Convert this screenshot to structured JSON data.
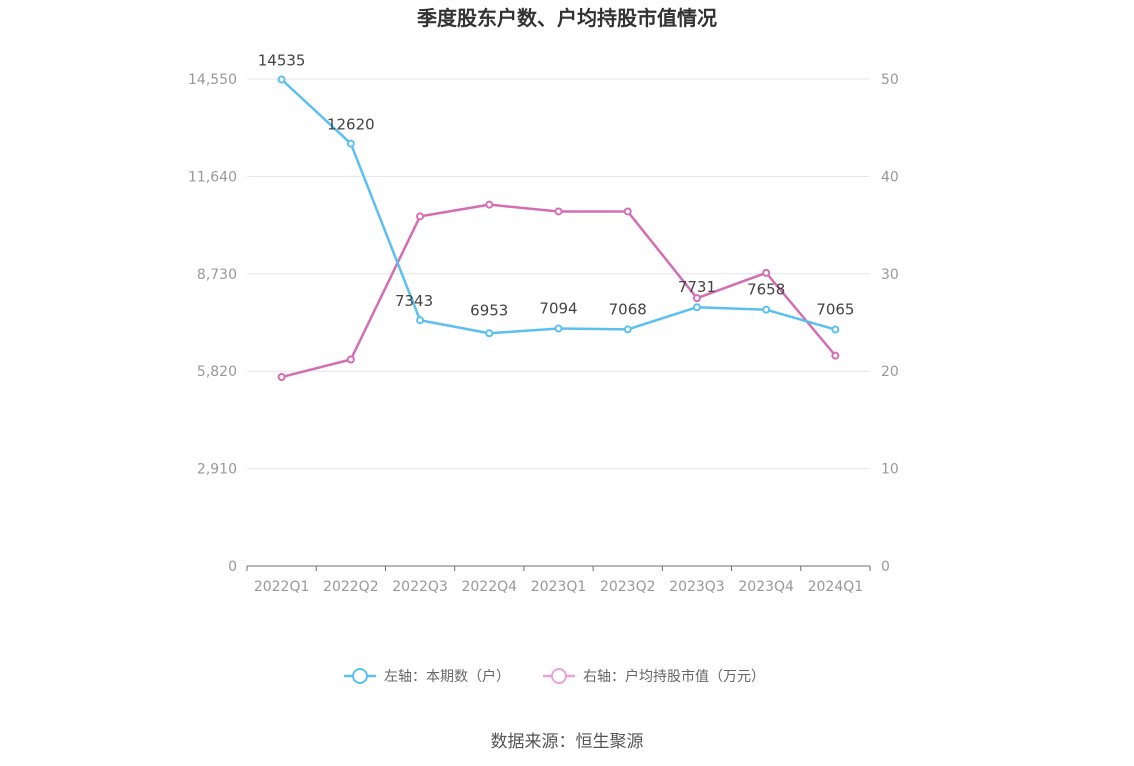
{
  "chart_data": {
    "type": "line",
    "title": "季度股东户数、户均持股市值情况",
    "categories": [
      "2022Q1",
      "2022Q2",
      "2022Q3",
      "2022Q4",
      "2023Q1",
      "2023Q2",
      "2023Q3",
      "2023Q4",
      "2024Q1"
    ],
    "left_axis": {
      "ylim": [
        0,
        14550
      ],
      "ticks": [
        0,
        2910,
        5820,
        8730,
        11640,
        14550
      ],
      "tick_labels": [
        "0",
        "2,910",
        "5,820",
        "8,730",
        "11,640",
        "14,550"
      ]
    },
    "right_axis": {
      "ylim": [
        0,
        50
      ],
      "ticks": [
        0,
        10,
        20,
        30,
        40,
        50
      ],
      "tick_labels": [
        "0",
        "10",
        "20",
        "30",
        "40",
        "50"
      ]
    },
    "series": [
      {
        "name": "左轴：本期数（户）",
        "axis": "left",
        "color": "#5bc0f0",
        "values": [
          14535,
          12620,
          7343,
          6953,
          7094,
          7068,
          7731,
          7658,
          7065
        ],
        "data_labels": [
          "14535",
          "12620",
          "7343",
          "6953",
          "7094",
          "7068",
          "7731",
          "7658",
          "7065"
        ]
      },
      {
        "name": "右轴：户均持股市值（万元）",
        "axis": "right",
        "color": "#d46eb4",
        "values": [
          19.4,
          21.2,
          35.9,
          37.1,
          36.4,
          36.4,
          27.5,
          30.1,
          21.6
        ]
      }
    ],
    "grid": true,
    "legend_position": "bottom"
  },
  "source": "数据来源：恒生聚源"
}
